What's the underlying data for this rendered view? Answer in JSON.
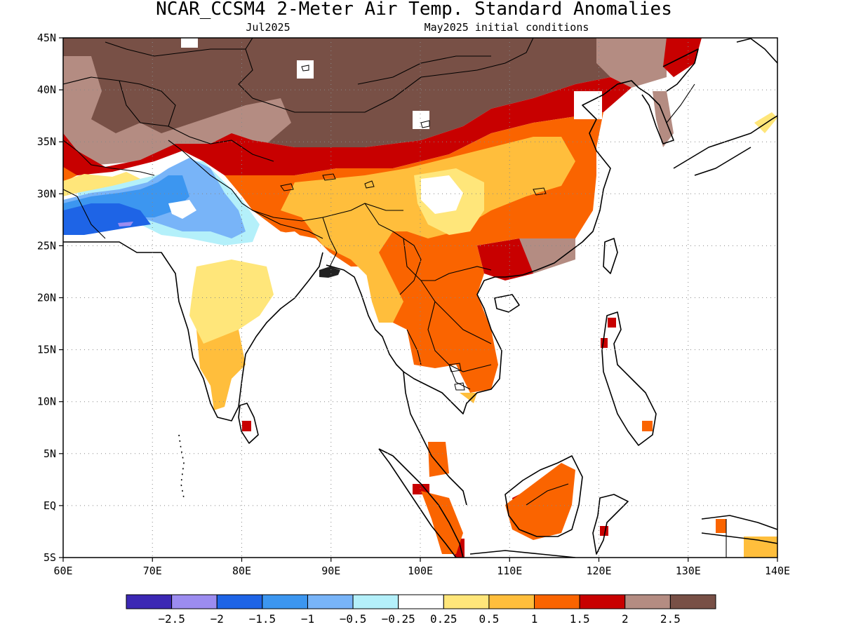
{
  "header": {
    "title": "NCAR_CCSM4 2-Meter Air Temp. Standard Anomalies",
    "valid_month": "Jul2025",
    "init": "May2025 initial conditions"
  },
  "map": {
    "lon_range": [
      60,
      140
    ],
    "lat_range": [
      -5,
      45
    ],
    "lon_ticks": [
      "60E",
      "70E",
      "80E",
      "90E",
      "100E",
      "110E",
      "120E",
      "130E",
      "140E"
    ],
    "lat_ticks": [
      "45N",
      "40N",
      "35N",
      "30N",
      "25N",
      "20N",
      "15N",
      "10N",
      "5N",
      "EQ",
      "5S"
    ],
    "grid": "dotted"
  },
  "legend": {
    "colors": [
      "#3c28b4",
      "#9c8cf0",
      "#1e64e6",
      "#3c96f0",
      "#78b4f8",
      "#b4f0fa",
      "#ffffff",
      "#ffe67a",
      "#ffbe3c",
      "#fa6400",
      "#c80000",
      "#b48c82",
      "#785046"
    ],
    "labels": [
      "-2.5",
      "-2",
      "-1.5",
      "-1",
      "-0.5",
      "-0.25",
      "0.25",
      "0.5",
      "1",
      "1.5",
      "2",
      "2.5"
    ]
  }
}
